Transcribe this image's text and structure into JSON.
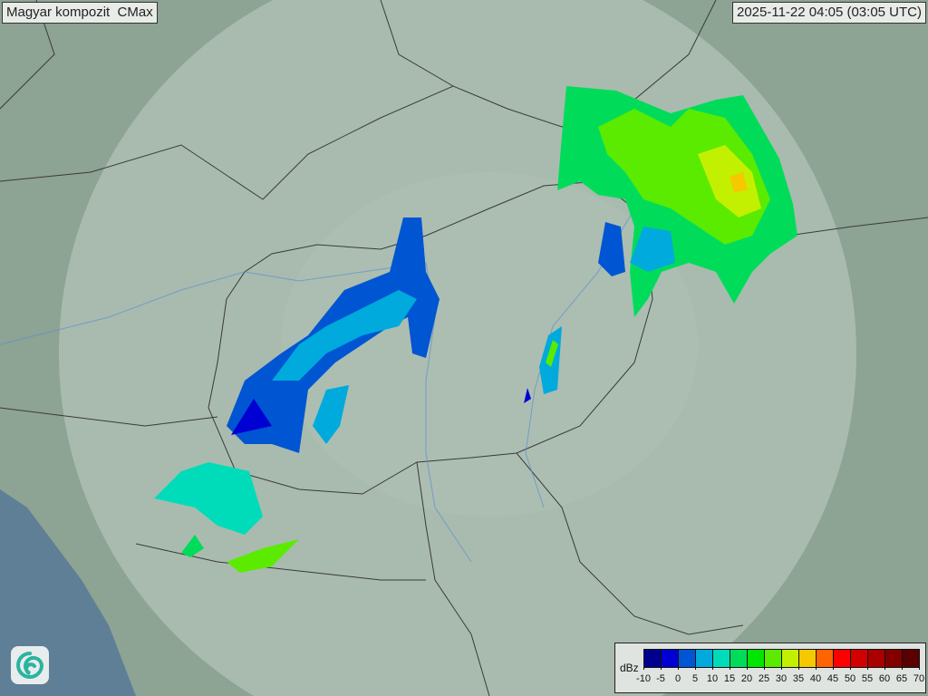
{
  "header": {
    "title": "Magyar kompozit  CMax",
    "timestamp": "2025-11-22 04:05 (03:05 UTC)"
  },
  "legend": {
    "unit": "dBz",
    "ticks": [
      "-10",
      "-5",
      "0",
      "5",
      "10",
      "15",
      "20",
      "25",
      "30",
      "35",
      "40",
      "45",
      "50",
      "55",
      "60",
      "65",
      "70"
    ],
    "colors": [
      "#00008f",
      "#0000d2",
      "#0055d2",
      "#00aadc",
      "#00dcb9",
      "#00dc5a",
      "#00e600",
      "#5aeb00",
      "#c3f000",
      "#f5c800",
      "#ff6400",
      "#ff0000",
      "#d20000",
      "#aa0000",
      "#820000",
      "#5a0000"
    ]
  },
  "logo": {
    "icon": "swirl-logo-icon"
  }
}
